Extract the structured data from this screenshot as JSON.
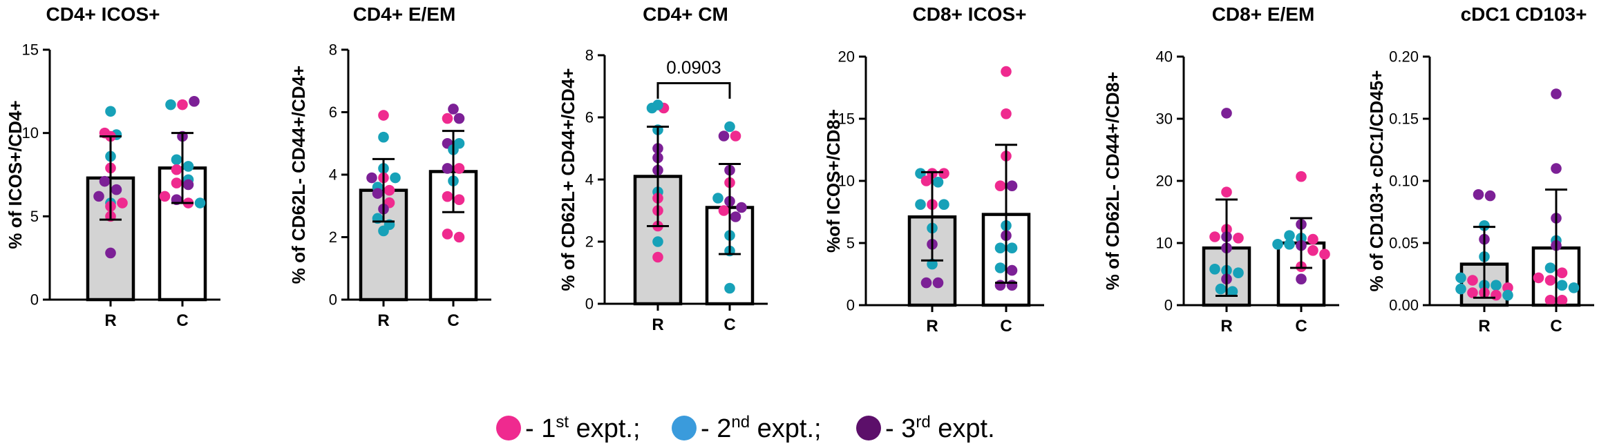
{
  "colors": {
    "expt1": "#ef2a8f",
    "expt2": "#17a1b8",
    "expt3": "#7c2096",
    "legend_expt1": "#ef2a8f",
    "legend_expt2": "#3a9bdc",
    "legend_expt3": "#5c0f6a",
    "bar_R": "#d3d3d3",
    "bar_C": "#ffffff"
  },
  "legend": [
    {
      "color_key": "legend_expt1",
      "prefix": " - 1",
      "sup": "st",
      "suffix": " expt.;"
    },
    {
      "color_key": "legend_expt2",
      "prefix": " - 2",
      "sup": "nd",
      "suffix": " expt.;"
    },
    {
      "color_key": "legend_expt3",
      "prefix": " - 3",
      "sup": "rd",
      "suffix": " expt."
    }
  ],
  "chart_data": [
    {
      "type": "bar",
      "title": "CD4+ ICOS+",
      "ylabel": "% of ICOS+/CD4+",
      "ylim": [
        0,
        15
      ],
      "yticks": [
        "0",
        "5",
        "10",
        "15"
      ],
      "categories": [
        "R",
        "C"
      ],
      "means": [
        7.3,
        7.9
      ],
      "errors": [
        [
          4.8,
          9.8
        ],
        [
          5.8,
          10.0
        ]
      ],
      "points": [
        [
          {
            "v": 10.0,
            "e": 1
          },
          {
            "v": 9.9,
            "e": 2
          },
          {
            "v": 9.8,
            "e": 1
          },
          {
            "v": 11.3,
            "e": 2
          },
          {
            "v": 8.6,
            "e": 2
          },
          {
            "v": 7.9,
            "e": 1
          },
          {
            "v": 7.1,
            "e": 3
          },
          {
            "v": 6.6,
            "e": 3
          },
          {
            "v": 6.2,
            "e": 3
          },
          {
            "v": 5.8,
            "e": 2
          },
          {
            "v": 5.6,
            "e": 1
          },
          {
            "v": 5.0,
            "e": 1
          },
          {
            "v": 2.8,
            "e": 3
          },
          {
            "v": 5.8,
            "e": 1
          }
        ],
        [
          {
            "v": 11.7,
            "e": 2
          },
          {
            "v": 11.7,
            "e": 1
          },
          {
            "v": 11.9,
            "e": 3
          },
          {
            "v": 9.8,
            "e": 3
          },
          {
            "v": 8.4,
            "e": 2
          },
          {
            "v": 8.0,
            "e": 2
          },
          {
            "v": 7.8,
            "e": 1
          },
          {
            "v": 7.2,
            "e": 2
          },
          {
            "v": 7.0,
            "e": 1
          },
          {
            "v": 6.9,
            "e": 3
          },
          {
            "v": 6.2,
            "e": 1
          },
          {
            "v": 6.0,
            "e": 3
          },
          {
            "v": 5.8,
            "e": 1
          },
          {
            "v": 5.8,
            "e": 2
          }
        ]
      ]
    },
    {
      "type": "bar",
      "title": "CD4+ E/EM",
      "ylabel": "% of CD62L- CD44+/CD4+",
      "ylim": [
        0,
        8
      ],
      "yticks": [
        "0",
        "2",
        "4",
        "6",
        "8"
      ],
      "categories": [
        "R",
        "C"
      ],
      "means": [
        3.5,
        4.1
      ],
      "errors": [
        [
          2.5,
          4.5
        ],
        [
          2.8,
          5.4
        ]
      ],
      "points": [
        [
          {
            "v": 5.9,
            "e": 1
          },
          {
            "v": 5.2,
            "e": 2
          },
          {
            "v": 4.2,
            "e": 2
          },
          {
            "v": 3.9,
            "e": 3
          },
          {
            "v": 3.9,
            "e": 1
          },
          {
            "v": 3.6,
            "e": 2
          },
          {
            "v": 3.5,
            "e": 1
          },
          {
            "v": 3.4,
            "e": 3
          },
          {
            "v": 3.1,
            "e": 1
          },
          {
            "v": 2.9,
            "e": 3
          },
          {
            "v": 2.6,
            "e": 2
          },
          {
            "v": 2.4,
            "e": 2
          },
          {
            "v": 2.2,
            "e": 2
          },
          {
            "v": 3.9,
            "e": 2
          }
        ],
        [
          {
            "v": 6.1,
            "e": 3
          },
          {
            "v": 5.8,
            "e": 1
          },
          {
            "v": 5.0,
            "e": 3
          },
          {
            "v": 5.0,
            "e": 2
          },
          {
            "v": 4.8,
            "e": 2
          },
          {
            "v": 4.2,
            "e": 3
          },
          {
            "v": 4.2,
            "e": 1
          },
          {
            "v": 3.8,
            "e": 2
          },
          {
            "v": 3.3,
            "e": 1
          },
          {
            "v": 3.2,
            "e": 1
          },
          {
            "v": 2.1,
            "e": 1
          },
          {
            "v": 2.0,
            "e": 1
          },
          {
            "v": 5.8,
            "e": 3
          }
        ]
      ]
    },
    {
      "type": "bar",
      "title": "CD4+ CM",
      "ylabel": "% of CD62L+ CD44+/CD4+",
      "ylim": [
        0,
        8
      ],
      "yticks": [
        "0",
        "2",
        "4",
        "6",
        "8"
      ],
      "categories": [
        "R",
        "C"
      ],
      "means": [
        4.1,
        3.1
      ],
      "errors": [
        [
          2.5,
          5.7
        ],
        [
          1.6,
          4.5
        ]
      ],
      "annotation": "0.0903",
      "points": [
        [
          {
            "v": 6.3,
            "e": 2
          },
          {
            "v": 6.3,
            "e": 1
          },
          {
            "v": 6.4,
            "e": 2
          },
          {
            "v": 5.6,
            "e": 2
          },
          {
            "v": 5.0,
            "e": 3
          },
          {
            "v": 4.7,
            "e": 3
          },
          {
            "v": 4.3,
            "e": 3
          },
          {
            "v": 3.6,
            "e": 2
          },
          {
            "v": 3.4,
            "e": 1
          },
          {
            "v": 3.0,
            "e": 1
          },
          {
            "v": 2.5,
            "e": 1
          },
          {
            "v": 2.0,
            "e": 2
          },
          {
            "v": 1.5,
            "e": 1
          }
        ],
        [
          {
            "v": 5.7,
            "e": 2
          },
          {
            "v": 5.4,
            "e": 3
          },
          {
            "v": 5.4,
            "e": 1
          },
          {
            "v": 4.3,
            "e": 3
          },
          {
            "v": 3.9,
            "e": 1
          },
          {
            "v": 3.4,
            "e": 2
          },
          {
            "v": 3.3,
            "e": 3
          },
          {
            "v": 3.1,
            "e": 3
          },
          {
            "v": 3.0,
            "e": 1
          },
          {
            "v": 2.8,
            "e": 3
          },
          {
            "v": 2.2,
            "e": 2
          },
          {
            "v": 1.7,
            "e": 2
          },
          {
            "v": 0.5,
            "e": 2
          }
        ]
      ]
    },
    {
      "type": "bar",
      "title": "CD8+ ICOS+",
      "ylabel": "%of ICOS+/CD8+",
      "ylim": [
        0,
        20
      ],
      "yticks": [
        "0",
        "5",
        "10",
        "15",
        "20"
      ],
      "categories": [
        "R",
        "C"
      ],
      "means": [
        7.1,
        7.3
      ],
      "errors": [
        [
          3.6,
          10.7
        ],
        [
          1.8,
          12.9
        ]
      ],
      "points": [
        [
          {
            "v": 10.6,
            "e": 2
          },
          {
            "v": 10.6,
            "e": 1
          },
          {
            "v": 10.6,
            "e": 1
          },
          {
            "v": 10.0,
            "e": 1
          },
          {
            "v": 9.9,
            "e": 2
          },
          {
            "v": 8.1,
            "e": 2
          },
          {
            "v": 8.1,
            "e": 1
          },
          {
            "v": 8.1,
            "e": 2
          },
          {
            "v": 6.2,
            "e": 2
          },
          {
            "v": 4.9,
            "e": 3
          },
          {
            "v": 3.3,
            "e": 2
          },
          {
            "v": 1.8,
            "e": 3
          },
          {
            "v": 1.8,
            "e": 3
          }
        ],
        [
          {
            "v": 18.8,
            "e": 1
          },
          {
            "v": 15.4,
            "e": 1
          },
          {
            "v": 12.0,
            "e": 1
          },
          {
            "v": 9.6,
            "e": 1
          },
          {
            "v": 9.6,
            "e": 3
          },
          {
            "v": 6.4,
            "e": 2
          },
          {
            "v": 5.6,
            "e": 3
          },
          {
            "v": 4.6,
            "e": 2
          },
          {
            "v": 4.6,
            "e": 2
          },
          {
            "v": 3.0,
            "e": 2
          },
          {
            "v": 2.8,
            "e": 3
          },
          {
            "v": 1.6,
            "e": 3
          },
          {
            "v": 1.6,
            "e": 3
          }
        ]
      ]
    },
    {
      "type": "bar",
      "title": "CD8+ E/EM",
      "ylabel": "% of CD62L- CD44+/CD8+",
      "ylim": [
        0,
        40
      ],
      "yticks": [
        "0",
        "10",
        "20",
        "30",
        "40"
      ],
      "categories": [
        "R",
        "C"
      ],
      "means": [
        9.2,
        10.0
      ],
      "errors": [
        [
          1.5,
          17.0
        ],
        [
          6.0,
          14.0
        ]
      ],
      "points": [
        [
          {
            "v": 30.9,
            "e": 3
          },
          {
            "v": 18.2,
            "e": 1
          },
          {
            "v": 12.2,
            "e": 1
          },
          {
            "v": 11.0,
            "e": 1
          },
          {
            "v": 11.0,
            "e": 3
          },
          {
            "v": 10.8,
            "e": 1
          },
          {
            "v": 9.2,
            "e": 3
          },
          {
            "v": 5.8,
            "e": 2
          },
          {
            "v": 5.6,
            "e": 2
          },
          {
            "v": 5.2,
            "e": 2
          },
          {
            "v": 4.2,
            "e": 3
          },
          {
            "v": 2.6,
            "e": 2
          },
          {
            "v": 2.2,
            "e": 2
          }
        ],
        [
          {
            "v": 20.7,
            "e": 1
          },
          {
            "v": 13.0,
            "e": 3
          },
          {
            "v": 11.2,
            "e": 2
          },
          {
            "v": 10.8,
            "e": 2
          },
          {
            "v": 10.6,
            "e": 1
          },
          {
            "v": 9.8,
            "e": 2
          },
          {
            "v": 9.8,
            "e": 2
          },
          {
            "v": 9.6,
            "e": 3
          },
          {
            "v": 8.8,
            "e": 1
          },
          {
            "v": 8.2,
            "e": 1
          },
          {
            "v": 6.2,
            "e": 1
          },
          {
            "v": 4.2,
            "e": 3
          }
        ]
      ]
    },
    {
      "type": "bar",
      "title": "cDC1 CD103+",
      "ylabel": "% of CD103+ cDC1/CD45+",
      "ylim": [
        0,
        0.2
      ],
      "yticks": [
        "0.00",
        "0.05",
        "0.10",
        "0.15",
        "0.20"
      ],
      "categories": [
        "R",
        "C"
      ],
      "means": [
        0.033,
        0.046
      ],
      "errors": [
        [
          0.006,
          0.063
        ],
        [
          0.0,
          0.093
        ]
      ],
      "points": [
        [
          {
            "v": 0.089,
            "e": 3
          },
          {
            "v": 0.088,
            "e": 3
          },
          {
            "v": 0.064,
            "e": 2
          },
          {
            "v": 0.053,
            "e": 3
          },
          {
            "v": 0.039,
            "e": 2
          },
          {
            "v": 0.022,
            "e": 2
          },
          {
            "v": 0.02,
            "e": 1
          },
          {
            "v": 0.016,
            "e": 2
          },
          {
            "v": 0.016,
            "e": 2
          },
          {
            "v": 0.014,
            "e": 1
          },
          {
            "v": 0.013,
            "e": 2
          },
          {
            "v": 0.01,
            "e": 1
          },
          {
            "v": 0.01,
            "e": 1
          },
          {
            "v": 0.008,
            "e": 1
          },
          {
            "v": 0.008,
            "e": 2
          }
        ],
        [
          {
            "v": 0.17,
            "e": 3
          },
          {
            "v": 0.11,
            "e": 3
          },
          {
            "v": 0.07,
            "e": 3
          },
          {
            "v": 0.052,
            "e": 2
          },
          {
            "v": 0.048,
            "e": 3
          },
          {
            "v": 0.03,
            "e": 2
          },
          {
            "v": 0.026,
            "e": 1
          },
          {
            "v": 0.022,
            "e": 1
          },
          {
            "v": 0.02,
            "e": 1
          },
          {
            "v": 0.016,
            "e": 2
          },
          {
            "v": 0.014,
            "e": 2
          },
          {
            "v": 0.004,
            "e": 1
          },
          {
            "v": 0.004,
            "e": 1
          }
        ]
      ]
    }
  ]
}
